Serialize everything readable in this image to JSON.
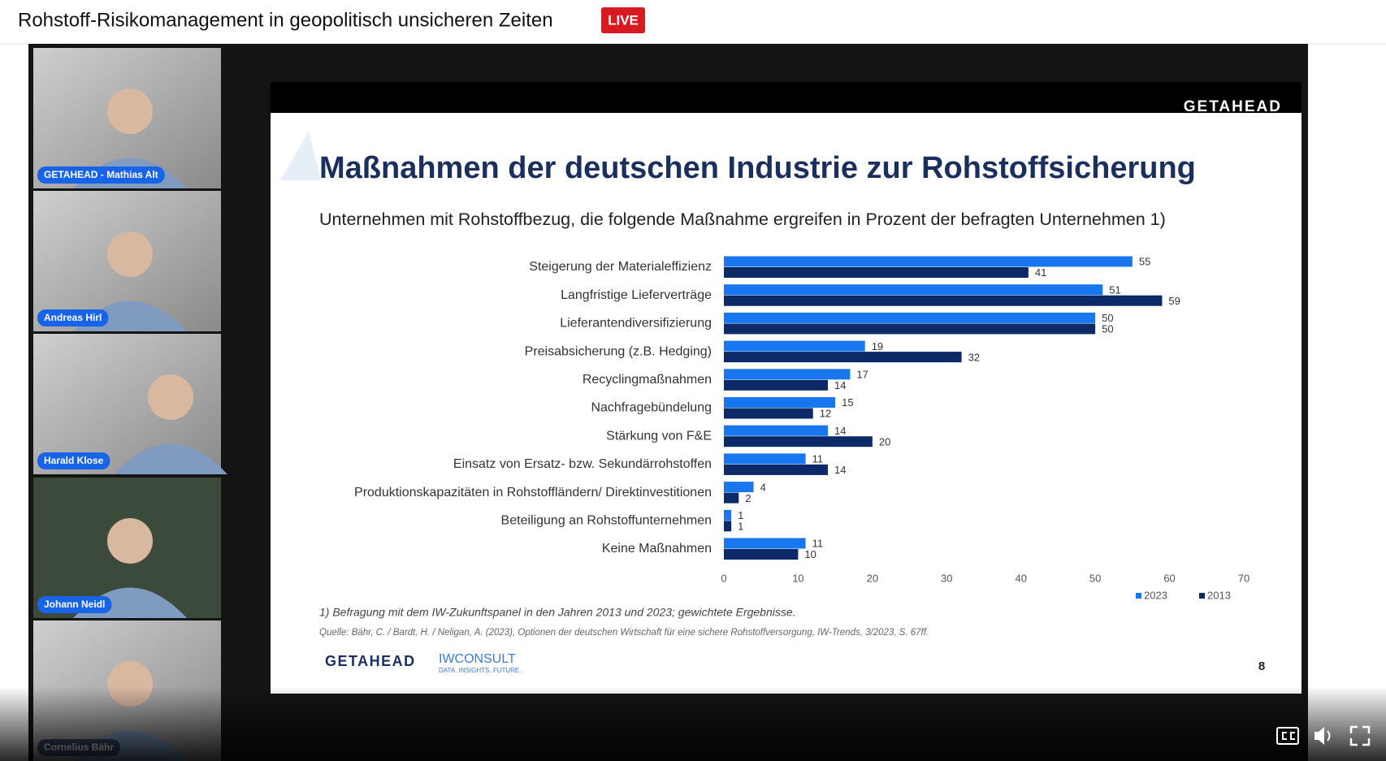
{
  "header": {
    "title": "Rohstoff-Risikomanagement in geopolitisch unsicheren Zeiten",
    "badge": "LIVE"
  },
  "participants": [
    "GETAHEAD - Mathias Alt",
    "Andreas Hirl",
    "Harald Klose",
    "Johann Neidl",
    "Cornelius Bähr"
  ],
  "slide": {
    "brand": "GETAHEAD",
    "footnote": "1) Befragung mit dem IW-Zukunftspanel in den Jahren 2013 und 2023; gewichtete Ergebnisse.",
    "source": "Quelle: Bähr, C. / Bardt, H. / Neligan, A. (2023), Optionen der deutschen Wirtschaft für eine sichere Rohstoffversorgung, IW-Trends, 3/2023, S. 67ff.",
    "logos": [
      "GETAHEAD",
      "IWCONSULT"
    ],
    "logo_tagline": "DATA. INSIGHTS. FUTURE.",
    "page": "8"
  },
  "chart_data": {
    "type": "bar",
    "orientation": "horizontal",
    "title": "Maßnahmen der deutschen Industrie zur Rohstoffsicherung",
    "subtitle": "Unternehmen mit Rohstoffbezug, die folgende Maßnahme ergreifen in Prozent der befragten Unternehmen 1)",
    "categories": [
      "Steigerung der Materialeffizienz",
      "Langfristige Lieferverträge",
      "Lieferantendiversifizierung",
      "Preisabsicherung (z.B. Hedging)",
      "Recyclingmaßnahmen",
      "Nachfragebündelung",
      "Stärkung von F&E",
      "Einsatz von Ersatz- bzw. Sekundärrohstoffen",
      "Produktionskapazitäten in Rohstoffländern/ Direktinvestitionen",
      "Beteiligung an Rohstoffunternehmen",
      "Keine Maßnahmen"
    ],
    "series": [
      {
        "name": "2023",
        "color": "#1877ee",
        "values": [
          55,
          51,
          50,
          19,
          17,
          15,
          14,
          11,
          4,
          1,
          11
        ]
      },
      {
        "name": "2013",
        "color": "#0d2a68",
        "values": [
          41,
          59,
          50,
          32,
          14,
          12,
          20,
          14,
          2,
          1,
          10
        ]
      }
    ],
    "xlim": [
      0,
      70
    ],
    "xticks": [
      0,
      10,
      20,
      30,
      40,
      50,
      60,
      70
    ],
    "grid": false,
    "legend": "bottom-right"
  }
}
